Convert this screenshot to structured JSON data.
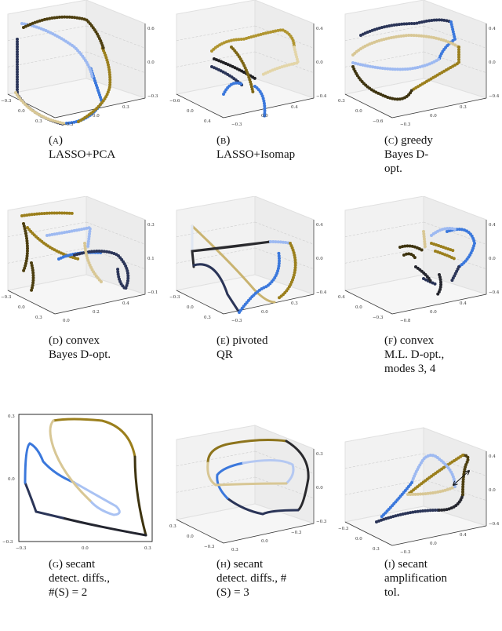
{
  "figure": {
    "panels": [
      {
        "id": "a",
        "letter": "(a)",
        "caption": "LASSO+PCA",
        "ticks": {
          "z": [
            "0.6",
            "0.0",
            "−0.3"
          ],
          "x": [
            "−0.3",
            "0.0",
            "0.3"
          ],
          "y": [
            "−0.3",
            "0.0",
            "0.3"
          ]
        }
      },
      {
        "id": "b",
        "letter": "(b)",
        "caption": "LASSO+Isomap",
        "ticks": {
          "z": [
            "0.4",
            "0.0",
            "−0.4"
          ],
          "x": [
            "−0.6",
            "0.0",
            "0.4"
          ],
          "y": [
            "−0.3",
            "0.0",
            "0.4"
          ]
        }
      },
      {
        "id": "c",
        "letter": "(c)",
        "caption": "greedy Bayes D-opt.",
        "ticks": {
          "z": [
            "0.4",
            "0.0",
            "−0.4"
          ],
          "x": [
            "0.3",
            "0.0",
            "−0.6"
          ],
          "y": [
            "−0.3",
            "0.0",
            "0.3"
          ]
        }
      },
      {
        "id": "d",
        "letter": "(d)",
        "caption": "convex Bayes D-opt.",
        "ticks": {
          "z": [
            "0.3",
            "0.1",
            "−0.1"
          ],
          "x": [
            "−0.3",
            "0.0",
            "0.3"
          ],
          "y": [
            "0.0",
            "0.2",
            "0.4"
          ]
        }
      },
      {
        "id": "e",
        "letter": "(e)",
        "caption": "pivoted QR",
        "ticks": {
          "z": [
            "0.4",
            "0.0",
            "−0.4"
          ],
          "x": [
            "−0.3",
            "0.0",
            "0.3"
          ],
          "y": [
            "−0.3",
            "0.0",
            "0.3"
          ]
        }
      },
      {
        "id": "f",
        "letter": "(f)",
        "caption": "convex M.L. D-opt., modes 3, 4",
        "ticks": {
          "z": [
            "0.4",
            "0.0",
            "−0.4"
          ],
          "x": [
            "0.4",
            "0.0",
            "−0.3"
          ],
          "y": [
            "−0.8",
            "0.0",
            "0.4"
          ]
        }
      },
      {
        "id": "g",
        "letter": "(g)",
        "caption": "secant detect. diffs., #(S) = 2",
        "ticks": {
          "y": [
            "0.3",
            "0.0",
            "−0.3"
          ],
          "x": [
            "−0.3",
            "0.0",
            "0.3"
          ]
        }
      },
      {
        "id": "h",
        "letter": "(h)",
        "caption": "secant detect. diffs., #(S) = 3",
        "ticks": {
          "z": [
            "0.3",
            "0.0",
            "−0.3"
          ],
          "x": [
            "0.3",
            "0.0",
            "−0.3"
          ],
          "y": [
            "0.3",
            "0.0",
            "−0.3"
          ]
        }
      },
      {
        "id": "i",
        "letter": "(i)",
        "caption": "secant amplification tol.",
        "ticks": {
          "z": [
            "0.4",
            "0.0",
            "−0.4"
          ],
          "x": [
            "−0.3",
            "0.0",
            "0.3"
          ],
          "y": [
            "−0.3",
            "0.0",
            "0.4"
          ]
        }
      }
    ]
  },
  "colors": {
    "navy": "#2b3558",
    "blue": "#3b78dc",
    "lightblue": "#9db9f1",
    "pale": "#dfe6f2",
    "tan": "#d8c795",
    "gold": "#9b7f1c",
    "olive": "#4d3f10",
    "black": "#1f1f22"
  }
}
